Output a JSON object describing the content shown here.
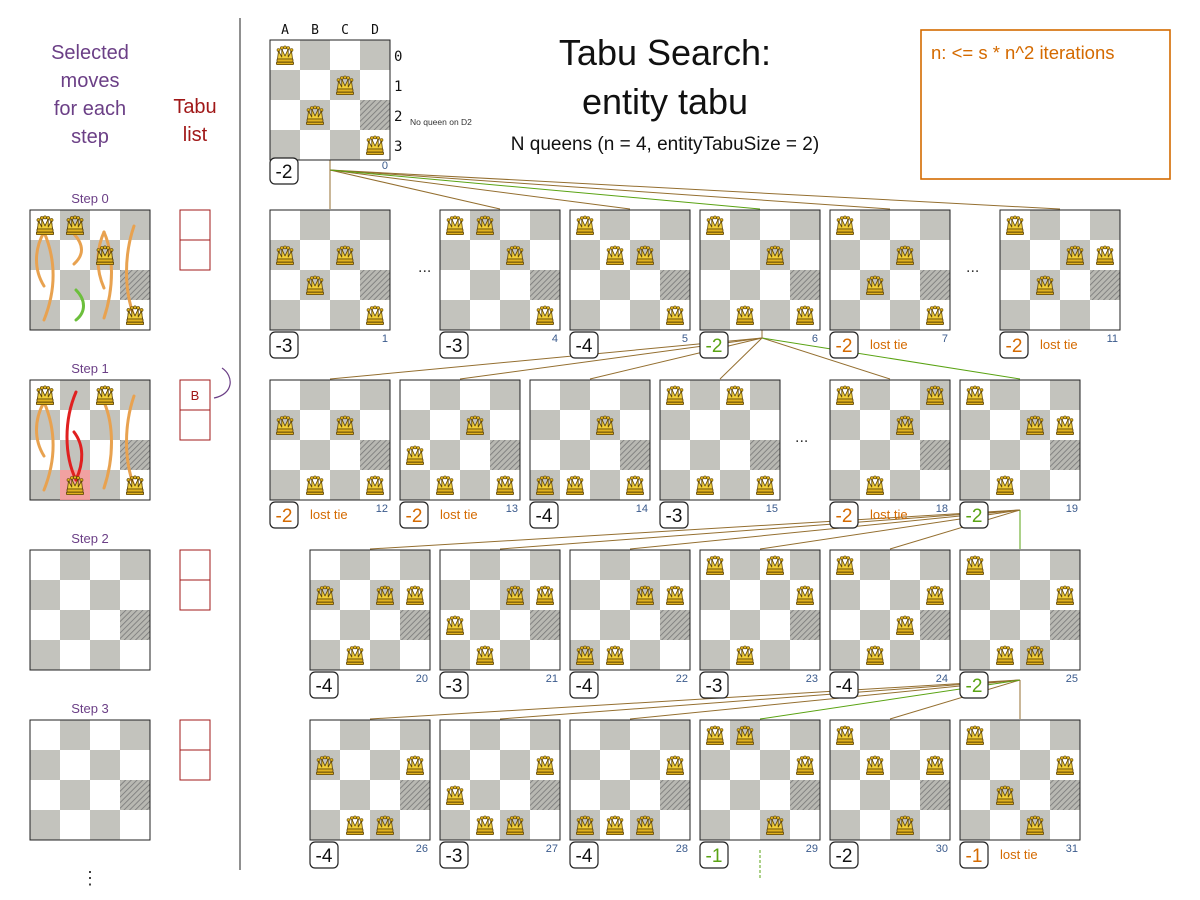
{
  "colors": {
    "dark_square": "#c3c3bd",
    "light_square": "#ffffff",
    "border": "#222222",
    "purple": "#6b3f86",
    "darkred": "#a01818",
    "orange": "#d46a00",
    "green": "#5aa313",
    "blue": "#3a5a8c",
    "brown": "#946f30",
    "arrow_orange": "#e8a250",
    "arrow_red": "#e02020",
    "arrow_green": "#6cbf3c",
    "tabu_pink": "#ef9090"
  },
  "title": {
    "line1": "Tabu Search:",
    "line2": "entity tabu",
    "subtitle": "N queens (n = 4, entityTabuSize = 2)"
  },
  "note_box": {
    "text": "n: <= s * n^2 iterations"
  },
  "left_panel": {
    "header_moves": [
      "Selected",
      "moves",
      "for each",
      "step"
    ],
    "header_tabu": [
      "Tabu",
      "list"
    ],
    "steps": [
      {
        "label": "Step 0",
        "tabu": [
          "",
          ""
        ]
      },
      {
        "label": "Step 1",
        "tabu": [
          "B",
          ""
        ]
      },
      {
        "label": "Step 2",
        "tabu": [
          "",
          ""
        ]
      },
      {
        "label": "Step 3",
        "tabu": [
          "",
          ""
        ]
      }
    ],
    "more": "⋮"
  },
  "initial_board": {
    "col_labels": [
      "A",
      "B",
      "C",
      "D"
    ],
    "row_labels": [
      "0",
      "1",
      "2",
      "3"
    ],
    "annotation": "No queen on D2",
    "score": "-2",
    "index": "0"
  },
  "ellipsis": "...",
  "lost_tie": "lost tie",
  "boards": [
    {
      "index": "1",
      "score": "-3",
      "score_color": "black"
    },
    {
      "index": "4",
      "score": "-3",
      "score_color": "black"
    },
    {
      "index": "5",
      "score": "-4",
      "score_color": "black"
    },
    {
      "index": "6",
      "score": "-2",
      "score_color": "green"
    },
    {
      "index": "7",
      "score": "-2",
      "score_color": "orange",
      "lost_tie": true
    },
    {
      "index": "11",
      "score": "-2",
      "score_color": "orange",
      "lost_tie": true
    },
    {
      "index": "12",
      "score": "-2",
      "score_color": "orange",
      "lost_tie": true
    },
    {
      "index": "13",
      "score": "-2",
      "score_color": "orange",
      "lost_tie": true
    },
    {
      "index": "14",
      "score": "-4",
      "score_color": "black"
    },
    {
      "index": "15",
      "score": "-3",
      "score_color": "black"
    },
    {
      "index": "18",
      "score": "-2",
      "score_color": "orange",
      "lost_tie": true
    },
    {
      "index": "19",
      "score": "-2",
      "score_color": "green"
    },
    {
      "index": "20",
      "score": "-4",
      "score_color": "black"
    },
    {
      "index": "21",
      "score": "-3",
      "score_color": "black"
    },
    {
      "index": "22",
      "score": "-4",
      "score_color": "black"
    },
    {
      "index": "23",
      "score": "-3",
      "score_color": "black"
    },
    {
      "index": "24",
      "score": "-4",
      "score_color": "black"
    },
    {
      "index": "25",
      "score": "-2",
      "score_color": "green"
    },
    {
      "index": "26",
      "score": "-4",
      "score_color": "black"
    },
    {
      "index": "27",
      "score": "-3",
      "score_color": "black"
    },
    {
      "index": "28",
      "score": "-4",
      "score_color": "black"
    },
    {
      "index": "29",
      "score": "-1",
      "score_color": "green"
    },
    {
      "index": "30",
      "score": "-2",
      "score_color": "black"
    },
    {
      "index": "31",
      "score": "-1",
      "score_color": "orange",
      "lost_tie": true
    }
  ]
}
